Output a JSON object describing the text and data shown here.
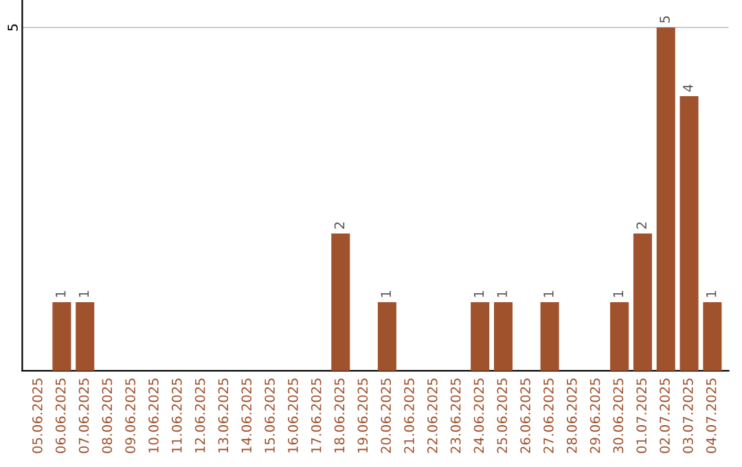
{
  "chart_data": {
    "type": "bar",
    "categories": [
      "05.06.2025",
      "06.06.2025",
      "07.06.2025",
      "08.06.2025",
      "09.06.2025",
      "10.06.2025",
      "11.06.2025",
      "12.06.2025",
      "13.06.2025",
      "14.06.2025",
      "15.06.2025",
      "16.06.2025",
      "17.06.2025",
      "18.06.2025",
      "19.06.2025",
      "20.06.2025",
      "21.06.2025",
      "22.06.2025",
      "23.06.2025",
      "24.06.2025",
      "25.06.2025",
      "26.06.2025",
      "27.06.2025",
      "28.06.2025",
      "29.06.2025",
      "30.06.2025",
      "01.07.2025",
      "02.07.2025",
      "03.07.2025",
      "04.07.2025"
    ],
    "values": [
      0,
      1,
      1,
      0,
      0,
      0,
      0,
      0,
      0,
      0,
      0,
      0,
      0,
      2,
      0,
      1,
      0,
      0,
      0,
      1,
      1,
      0,
      1,
      0,
      0,
      1,
      2,
      5,
      4,
      1
    ],
    "value_labels": [
      null,
      "1",
      "1",
      null,
      null,
      null,
      null,
      null,
      null,
      null,
      null,
      null,
      null,
      "2",
      null,
      "1",
      null,
      null,
      null,
      "1",
      "1",
      null,
      "1",
      null,
      null,
      "1",
      "2",
      "5",
      "4",
      "1"
    ],
    "color": "#a0522d",
    "ylim": [
      0,
      5.4
    ],
    "yticks": [
      5
    ],
    "grid": "y",
    "legend": false
  }
}
